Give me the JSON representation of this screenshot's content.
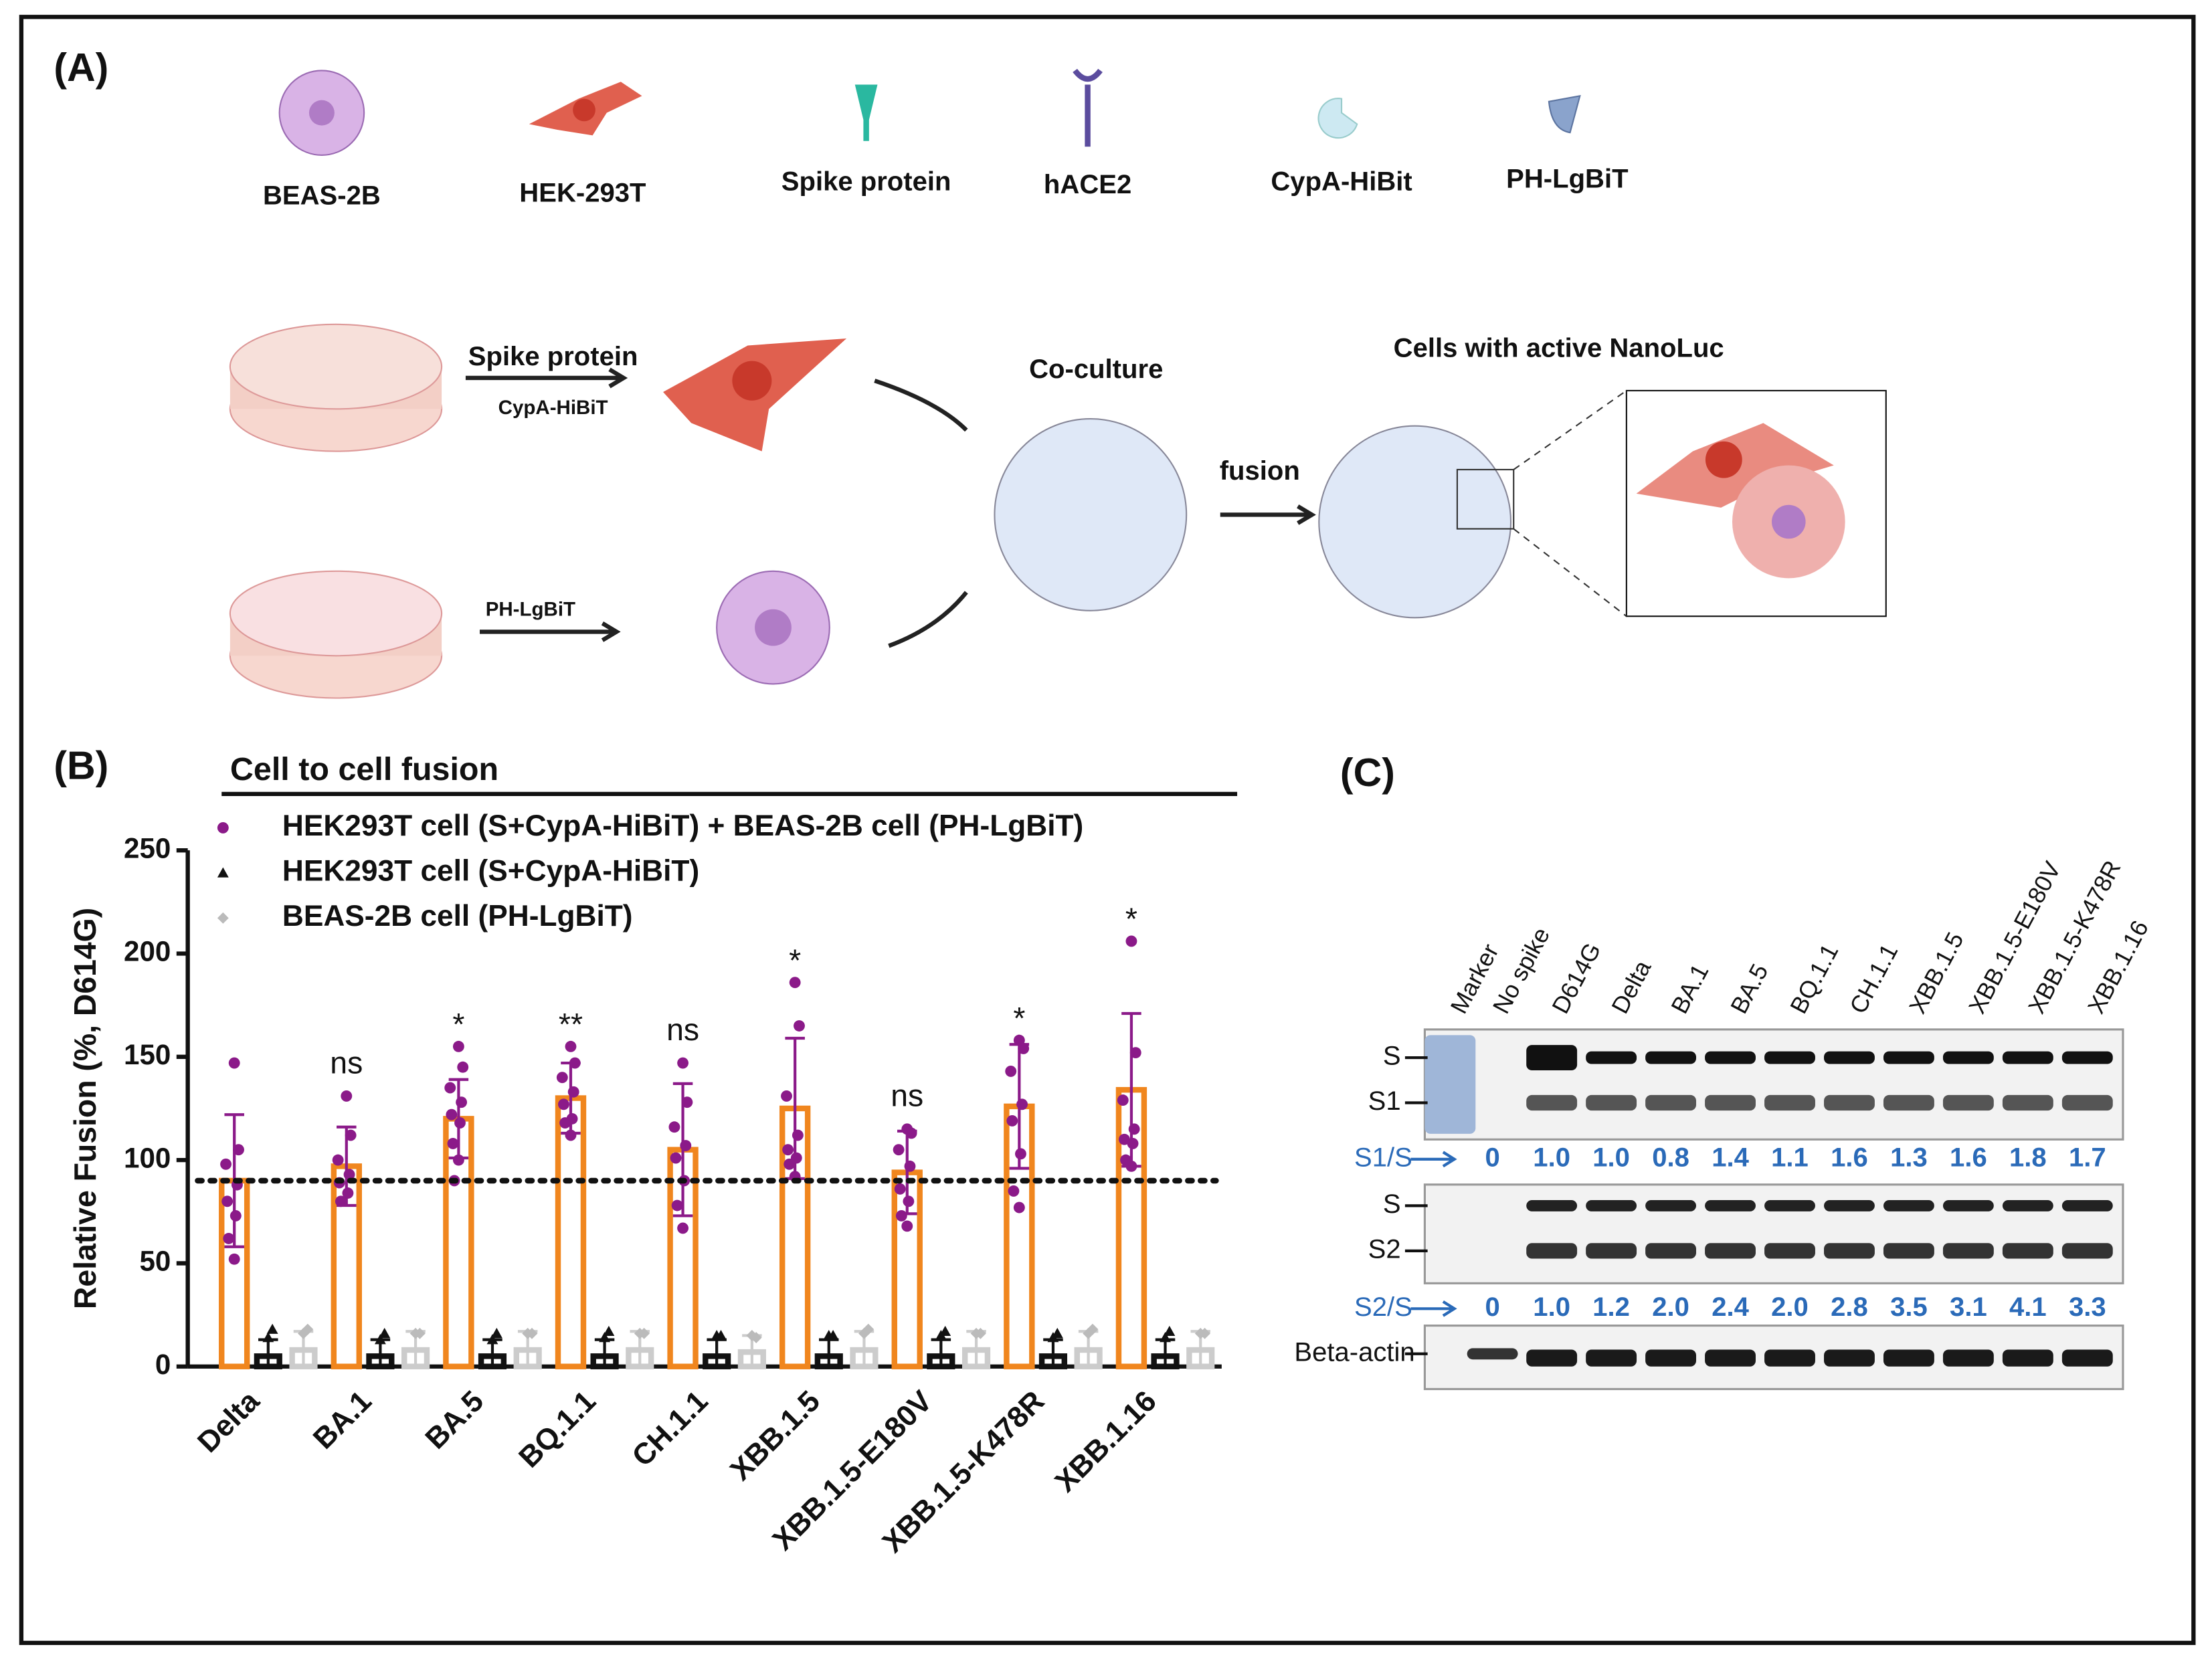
{
  "panel_a": {
    "label": "(A)",
    "legend": [
      "BEAS-2B",
      "HEK-293T",
      "Spike protein",
      "hACE2",
      "CypA-HiBit",
      "PH-LgBiT"
    ],
    "workflow": {
      "top_arrow_label": "Spike protein",
      "top_arrow_sublabel": "CypA-HiBiT",
      "bottom_arrow_label": "PH-LgBiT",
      "coculture": "Co-culture",
      "fusion": "fusion",
      "result": "Cells with active NanoLuc"
    }
  },
  "chart_data": {
    "type": "bar",
    "panel_label": "(B)",
    "title": "Cell to cell fusion",
    "ylabel": "Relative Fusion (%, D614G)",
    "categories": [
      "Delta",
      "BA.1",
      "BA.5",
      "BQ.1.1",
      "CH.1.1",
      "XBB.1.5",
      "XBB.1.5-E180V",
      "XBB.1.5-K478R",
      "XBB.1.16"
    ],
    "ylim": [
      0,
      250
    ],
    "yticks": [
      0,
      50,
      100,
      150,
      200,
      250
    ],
    "reference_line": 90,
    "significance": [
      null,
      "ns",
      "*",
      "**",
      "ns",
      "*",
      "ns",
      "*",
      "*"
    ],
    "series": [
      {
        "name": "HEK293T cell (S+CypA-HiBiT) + BEAS-2B cell (PH-LgBiT)",
        "color": "#f0861e",
        "marker_color": "#8b1a89",
        "marker": "circle",
        "values": [
          90,
          97,
          120,
          130,
          105,
          125,
          94,
          126,
          134
        ],
        "errors": [
          32,
          19,
          19,
          17,
          32,
          34,
          20,
          30,
          37
        ],
        "points": [
          [
            147,
            105,
            98,
            88,
            80,
            73,
            62,
            52
          ],
          [
            131,
            112,
            100,
            93,
            89,
            84,
            80
          ],
          [
            155,
            145,
            135,
            128,
            122,
            118,
            108,
            100,
            90
          ],
          [
            155,
            147,
            140,
            133,
            127,
            120,
            118,
            112
          ],
          [
            147,
            128,
            116,
            107,
            101,
            90,
            78,
            67
          ],
          [
            186,
            165,
            131,
            112,
            105,
            101,
            98,
            92
          ],
          [
            115,
            113,
            105,
            97,
            86,
            80,
            73,
            68
          ],
          [
            158,
            154,
            143,
            127,
            119,
            103,
            85,
            77
          ],
          [
            206,
            152,
            129,
            115,
            110,
            108,
            100,
            97
          ]
        ]
      },
      {
        "name": "HEK293T cell (S+CypA-HiBiT)",
        "color": "#111111",
        "marker_color": "#111111",
        "marker": "triangle",
        "values": [
          5,
          5,
          5,
          5,
          5,
          5,
          5,
          5,
          5
        ],
        "errors": [
          8,
          8,
          8,
          8,
          8,
          8,
          8,
          8,
          8
        ],
        "points": [
          [
            14,
            18
          ],
          [
            13,
            16
          ],
          [
            13,
            16
          ],
          [
            14,
            17
          ],
          [
            15,
            15
          ],
          [
            15,
            15
          ],
          [
            15,
            17
          ],
          [
            14,
            16
          ],
          [
            14,
            17
          ]
        ]
      },
      {
        "name": "BEAS-2B cell (PH-LgBiT)",
        "color": "#cccccc",
        "marker_color": "#bbbbbb",
        "marker": "diamond",
        "values": [
          8,
          8,
          8,
          8,
          7,
          8,
          8,
          8,
          8
        ],
        "errors": [
          9,
          9,
          9,
          9,
          8,
          9,
          9,
          9,
          9
        ],
        "points": [
          [
            16,
            18
          ],
          [
            16,
            16
          ],
          [
            16,
            16
          ],
          [
            16,
            16
          ],
          [
            15,
            14
          ],
          [
            16,
            18
          ],
          [
            16,
            16
          ],
          [
            16,
            18
          ],
          [
            16,
            16
          ]
        ]
      }
    ]
  },
  "panel_c": {
    "label": "(C)",
    "lanes": [
      "Marker",
      "No spike",
      "D614G",
      "Delta",
      "BA.1",
      "BA.5",
      "BQ.1.1",
      "CH.1.1",
      "XBB.1.5",
      "XBB.1.5-E180V",
      "XBB.1.5-K478R",
      "XBB.1.16"
    ],
    "blot1_bands": [
      "S",
      "S1"
    ],
    "ratio1_label": "S1/S",
    "ratio1": [
      "0",
      "1.0",
      "1.0",
      "0.8",
      "1.4",
      "1.1",
      "1.6",
      "1.3",
      "1.6",
      "1.8",
      "1.7"
    ],
    "blot2_bands": [
      "S",
      "S2"
    ],
    "ratio2_label": "S2/S",
    "ratio2": [
      "0",
      "1.0",
      "1.2",
      "2.0",
      "2.4",
      "2.0",
      "2.8",
      "3.5",
      "3.1",
      "4.1",
      "3.3"
    ],
    "loading_control": "Beta-actin"
  }
}
